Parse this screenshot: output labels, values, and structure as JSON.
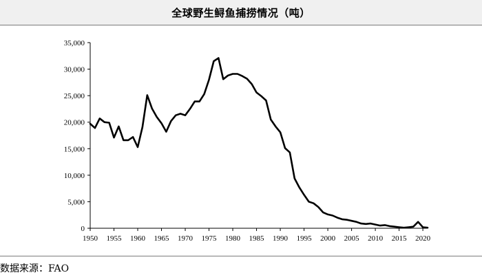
{
  "title": "全球野生鲟鱼捕捞情况（吨）",
  "source_note": "数据来源：FAO",
  "chart_data": {
    "type": "line",
    "title": "全球野生鲟鱼捕捞情况（吨）",
    "xlabel": "",
    "ylabel": "",
    "xlim": [
      1950,
      2021
    ],
    "ylim": [
      0,
      35000
    ],
    "grid": false,
    "legend": "none",
    "line_color": "#000000",
    "x_ticks": [
      "1950",
      "1955",
      "1960",
      "1965",
      "1970",
      "1975",
      "1980",
      "1985",
      "1990",
      "1995",
      "2000",
      "2005",
      "2010",
      "2015",
      "2020"
    ],
    "y_ticks": [
      "0",
      "5,000",
      "10,000",
      "15,000",
      "20,000",
      "25,000",
      "30,000",
      "35,000"
    ],
    "series": [
      {
        "x": [
          1950,
          1951,
          1952,
          1953,
          1954,
          1955,
          1956,
          1957,
          1958,
          1959,
          1960,
          1961,
          1962,
          1963,
          1964,
          1965,
          1966,
          1967,
          1968,
          1969,
          1970,
          1971,
          1972,
          1973,
          1974,
          1975,
          1976,
          1977,
          1978,
          1979,
          1980,
          1981,
          1982,
          1983,
          1984,
          1985,
          1986,
          1987,
          1988,
          1989,
          1990,
          1991,
          1992,
          1993,
          1994,
          1995,
          1996,
          1997,
          1998,
          1999,
          2000,
          2001,
          2002,
          2003,
          2004,
          2005,
          2006,
          2007,
          2008,
          2009,
          2010,
          2011,
          2012,
          2013,
          2014,
          2015,
          2016,
          2017,
          2018,
          2019,
          2020,
          2021
        ],
        "values": [
          19700,
          18900,
          20700,
          20000,
          19900,
          17100,
          19200,
          16600,
          16600,
          17200,
          15300,
          19100,
          25100,
          22600,
          21000,
          19800,
          18200,
          20200,
          21300,
          21600,
          21300,
          22500,
          23900,
          23900,
          25300,
          28000,
          31500,
          32100,
          28100,
          28800,
          29100,
          29100,
          28700,
          28200,
          27200,
          25600,
          24900,
          24100,
          20500,
          19200,
          18100,
          15100,
          14300,
          9400,
          7700,
          6300,
          5000,
          4700,
          4000,
          3000,
          2600,
          2400,
          2000,
          1700,
          1600,
          1400,
          1200,
          900,
          800,
          900,
          700,
          500,
          600,
          400,
          300,
          200,
          100,
          200,
          300,
          1200,
          200,
          100
        ]
      }
    ]
  }
}
